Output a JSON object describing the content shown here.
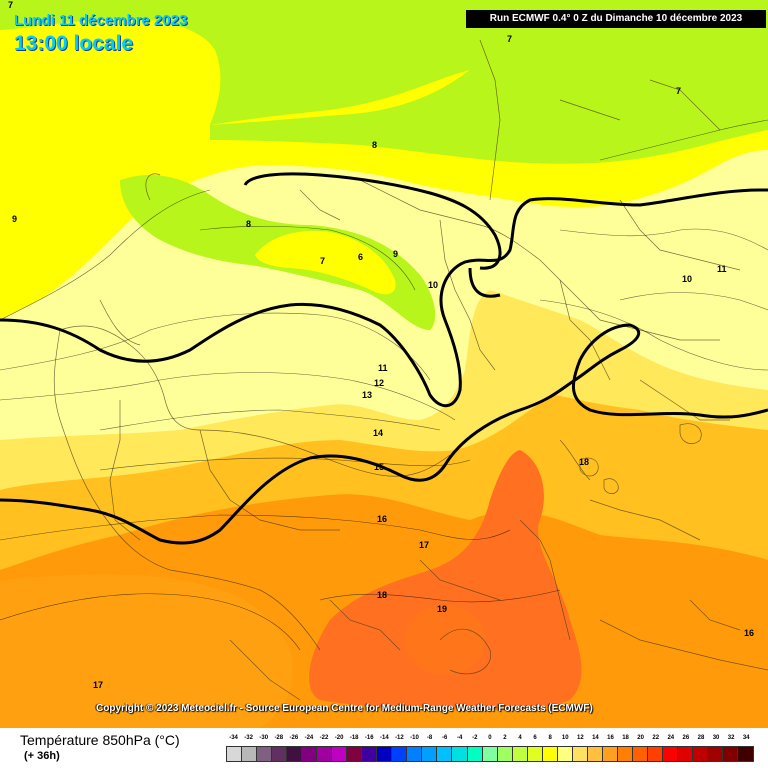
{
  "header": {
    "date_title": "Lundi 11 décembre 2023",
    "time_title": "13:00 locale",
    "run_info": "Run ECMWF 0.4° 0 Z du Dimanche 10 décembre 2023"
  },
  "copyright": "Copyright © 2023 Meteociel.fr - Source European Centre for Medium-Range Weather Forecasts (ECMWF)",
  "footer": {
    "parameter": "Température 850hPa (°C)",
    "lead_time": "(+ 36h)"
  },
  "legend": {
    "labels": [
      "-34",
      "-32",
      "-30",
      "-28",
      "-26",
      "-24",
      "-22",
      "-20",
      "-18",
      "-16",
      "-14",
      "-12",
      "-10",
      "-8",
      "-6",
      "-4",
      "-2",
      "0",
      "2",
      "4",
      "6",
      "8",
      "10",
      "12",
      "14",
      "16",
      "18",
      "20",
      "22",
      "24",
      "26",
      "28",
      "30",
      "32",
      "34"
    ],
    "colors": [
      "#d8d8d8",
      "#b8b8b8",
      "#806080",
      "#603060",
      "#401040",
      "#800080",
      "#a000a0",
      "#c000c0",
      "#800040",
      "#4000a0",
      "#0000c0",
      "#0040ff",
      "#0080ff",
      "#00a0ff",
      "#00c0ff",
      "#00e0e0",
      "#00ffc0",
      "#80ffa0",
      "#a0ff60",
      "#c0ff40",
      "#e0ff20",
      "#ffff00",
      "#ffff80",
      "#ffe060",
      "#ffc040",
      "#ffa020",
      "#ff8000",
      "#ff6000",
      "#ff4000",
      "#ff0000",
      "#e00000",
      "#c00000",
      "#a00000",
      "#800000",
      "#400000"
    ]
  },
  "map": {
    "colors": {
      "c6to8": "#b8f51a",
      "c8to10": "#ffff00",
      "c10to12": "#ffff9a",
      "c12to14": "#ffe85a",
      "c14to16": "#ffc020",
      "c16to18": "#ff9a0a",
      "c18to20": "#ff7020"
    },
    "isotherm_labels": [
      "7",
      "7",
      "7",
      "8",
      "9",
      "8",
      "7",
      "6",
      "9",
      "10",
      "10",
      "11",
      "11",
      "12",
      "13",
      "14",
      "15",
      "16",
      "17",
      "18",
      "18",
      "19",
      "16",
      "17"
    ]
  }
}
